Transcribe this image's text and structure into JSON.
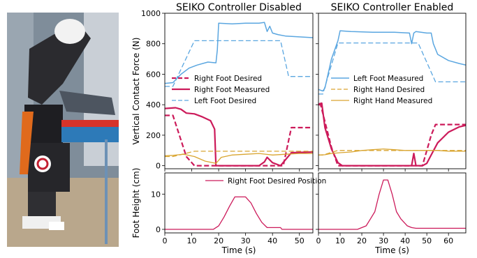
{
  "colors": {
    "right_foot": "#cc1a5a",
    "left_foot": "#5aa6e0",
    "right_hand": "#d9a530"
  },
  "chart_data": [
    {
      "type": "line",
      "title": "SEIKO Controller Disabled",
      "ylabel": "Vertical Contact Force (N)",
      "xlim": [
        0,
        55
      ],
      "ylim": [
        -20,
        1000
      ],
      "xticks": [
        0,
        10,
        20,
        30,
        40,
        50
      ],
      "yticks": [
        0,
        200,
        400,
        600,
        800,
        1000
      ],
      "legend_position": "middle-left",
      "series": [
        {
          "name": "Right Foot Desired",
          "color": "right_foot",
          "dash": "dashed",
          "width": 2.2,
          "x": [
            0,
            3,
            8,
            11,
            19,
            44,
            47,
            55
          ],
          "y": [
            330,
            330,
            60,
            0,
            0,
            0,
            250,
            250
          ]
        },
        {
          "name": "Right Foot Measured",
          "color": "right_foot",
          "dash": "solid",
          "width": 2.2,
          "x": [
            0,
            4,
            6,
            8,
            11,
            14,
            17,
            18.5,
            19,
            22,
            35,
            37,
            38,
            40,
            43,
            47,
            55
          ],
          "y": [
            375,
            380,
            370,
            345,
            340,
            320,
            295,
            240,
            0,
            0,
            0,
            25,
            55,
            20,
            0,
            85,
            90
          ]
        },
        {
          "name": "Left Foot Desired",
          "color": "left_foot",
          "dash": "dashed",
          "width": 1.3,
          "x": [
            0,
            3,
            11,
            43,
            46,
            55
          ],
          "y": [
            520,
            520,
            820,
            820,
            585,
            585
          ]
        },
        {
          "name": "Left Foot Measured",
          "color": "left_foot",
          "dash": "solid",
          "width": 1.5,
          "x": [
            0,
            3,
            6,
            9,
            12,
            16,
            19,
            19.5,
            20,
            25,
            30,
            35,
            37,
            38,
            39,
            40,
            42,
            45,
            50,
            55
          ],
          "y": [
            540,
            545,
            600,
            640,
            660,
            680,
            675,
            760,
            935,
            930,
            935,
            935,
            940,
            880,
            915,
            870,
            860,
            850,
            845,
            840
          ]
        },
        {
          "name": "Right Hand Desired",
          "color": "right_hand",
          "dash": "dashed",
          "width": 1.3,
          "x": [
            0,
            3,
            11,
            44,
            55
          ],
          "y": [
            60,
            60,
            95,
            95,
            95
          ]
        },
        {
          "name": "Right Hand Measured",
          "color": "right_hand",
          "dash": "solid",
          "width": 1.3,
          "x": [
            0,
            3,
            7,
            11,
            15,
            19,
            21,
            25,
            30,
            35,
            40,
            45,
            50,
            55
          ],
          "y": [
            65,
            68,
            75,
            60,
            30,
            15,
            55,
            70,
            75,
            80,
            70,
            75,
            80,
            80
          ]
        }
      ]
    },
    {
      "type": "line",
      "title": "SEIKO Controller Enabled",
      "xlim": [
        0,
        68
      ],
      "ylim": [
        -20,
        1000
      ],
      "xticks": [
        0,
        10,
        20,
        30,
        40,
        50,
        60
      ],
      "yticks": [
        0,
        200,
        400,
        600,
        800,
        1000
      ],
      "legend_position": "middle-right",
      "series": [
        {
          "name": "Right Foot Desired",
          "color": "right_foot",
          "dash": "dashed",
          "width": 2.2,
          "x": [
            0,
            1,
            6,
            9,
            46,
            48,
            52,
            54,
            68
          ],
          "y": [
            400,
            400,
            120,
            0,
            0,
            0,
            200,
            270,
            270
          ]
        },
        {
          "name": "Right Foot Measured",
          "color": "right_foot",
          "dash": "solid",
          "width": 2.2,
          "x": [
            0,
            1.5,
            3,
            6,
            9,
            11,
            20,
            43,
            44,
            45,
            46,
            48,
            50,
            52,
            55,
            60,
            65,
            68
          ],
          "y": [
            405,
            410,
            250,
            110,
            20,
            0,
            0,
            0,
            80,
            0,
            0,
            0,
            15,
            70,
            150,
            220,
            255,
            265
          ]
        },
        {
          "name": "Left Foot Measured",
          "color": "left_foot",
          "dash": "solid",
          "width": 1.5,
          "x": [
            0,
            2,
            3,
            6,
            9,
            10,
            15,
            25,
            35,
            42,
            43,
            44,
            45,
            50,
            52,
            53,
            55,
            60,
            65,
            68
          ],
          "y": [
            500,
            490,
            510,
            700,
            820,
            885,
            880,
            875,
            875,
            870,
            800,
            870,
            880,
            870,
            870,
            800,
            730,
            690,
            670,
            660
          ]
        },
        {
          "name": "Left Foot Desired",
          "color": "left_foot",
          "dash": "dashed",
          "width": 1.3,
          "x": [
            0,
            2,
            9,
            46,
            54,
            68
          ],
          "y": [
            470,
            470,
            805,
            805,
            550,
            550
          ]
        },
        {
          "name": "Right Hand Desired",
          "color": "right_hand",
          "dash": "dashed",
          "width": 1.3,
          "x": [
            0,
            2,
            9,
            30,
            55,
            68
          ],
          "y": [
            70,
            70,
            100,
            100,
            100,
            100
          ]
        },
        {
          "name": "Right Hand Measured",
          "color": "right_hand",
          "dash": "solid",
          "width": 1.3,
          "x": [
            0,
            3,
            6,
            10,
            15,
            20,
            25,
            30,
            35,
            40,
            45,
            50,
            55,
            60,
            68
          ],
          "y": [
            70,
            72,
            80,
            85,
            90,
            100,
            105,
            110,
            105,
            100,
            100,
            100,
            100,
            95,
            95
          ]
        }
      ]
    },
    {
      "type": "line",
      "ylabel": "Foot Height (cm)",
      "xlabel": "Time (s)",
      "xlim": [
        0,
        55
      ],
      "ylim": [
        -1,
        16
      ],
      "xticks": [
        0,
        10,
        20,
        30,
        40,
        50
      ],
      "yticks": [
        0,
        10
      ],
      "legend_position": "top",
      "series": [
        {
          "name": "Right Foot Desired Position",
          "color": "right_foot",
          "dash": "solid",
          "width": 1.3,
          "x": [
            0,
            18,
            20,
            22,
            24,
            26,
            30,
            32,
            34,
            36,
            38,
            43,
            43.5,
            55
          ],
          "y": [
            0,
            0,
            1,
            3.5,
            6.5,
            9.2,
            9.2,
            7.5,
            4.5,
            2,
            0.5,
            0.5,
            0,
            0
          ]
        }
      ]
    },
    {
      "type": "line",
      "xlabel": "Time (s)",
      "xlim": [
        0,
        68
      ],
      "ylim": [
        -1,
        16
      ],
      "xticks": [
        0,
        10,
        20,
        30,
        40,
        50,
        60
      ],
      "yticks": [
        0,
        10
      ],
      "series": [
        {
          "color": "right_foot",
          "dash": "solid",
          "width": 1.3,
          "x": [
            0,
            18,
            22,
            24,
            26,
            28,
            30,
            32,
            34,
            36,
            38,
            41,
            43,
            45,
            68
          ],
          "y": [
            0,
            0,
            1,
            3,
            5,
            10,
            14,
            14,
            10,
            5,
            3,
            1,
            0.5,
            0.3,
            0.3
          ]
        }
      ]
    }
  ]
}
